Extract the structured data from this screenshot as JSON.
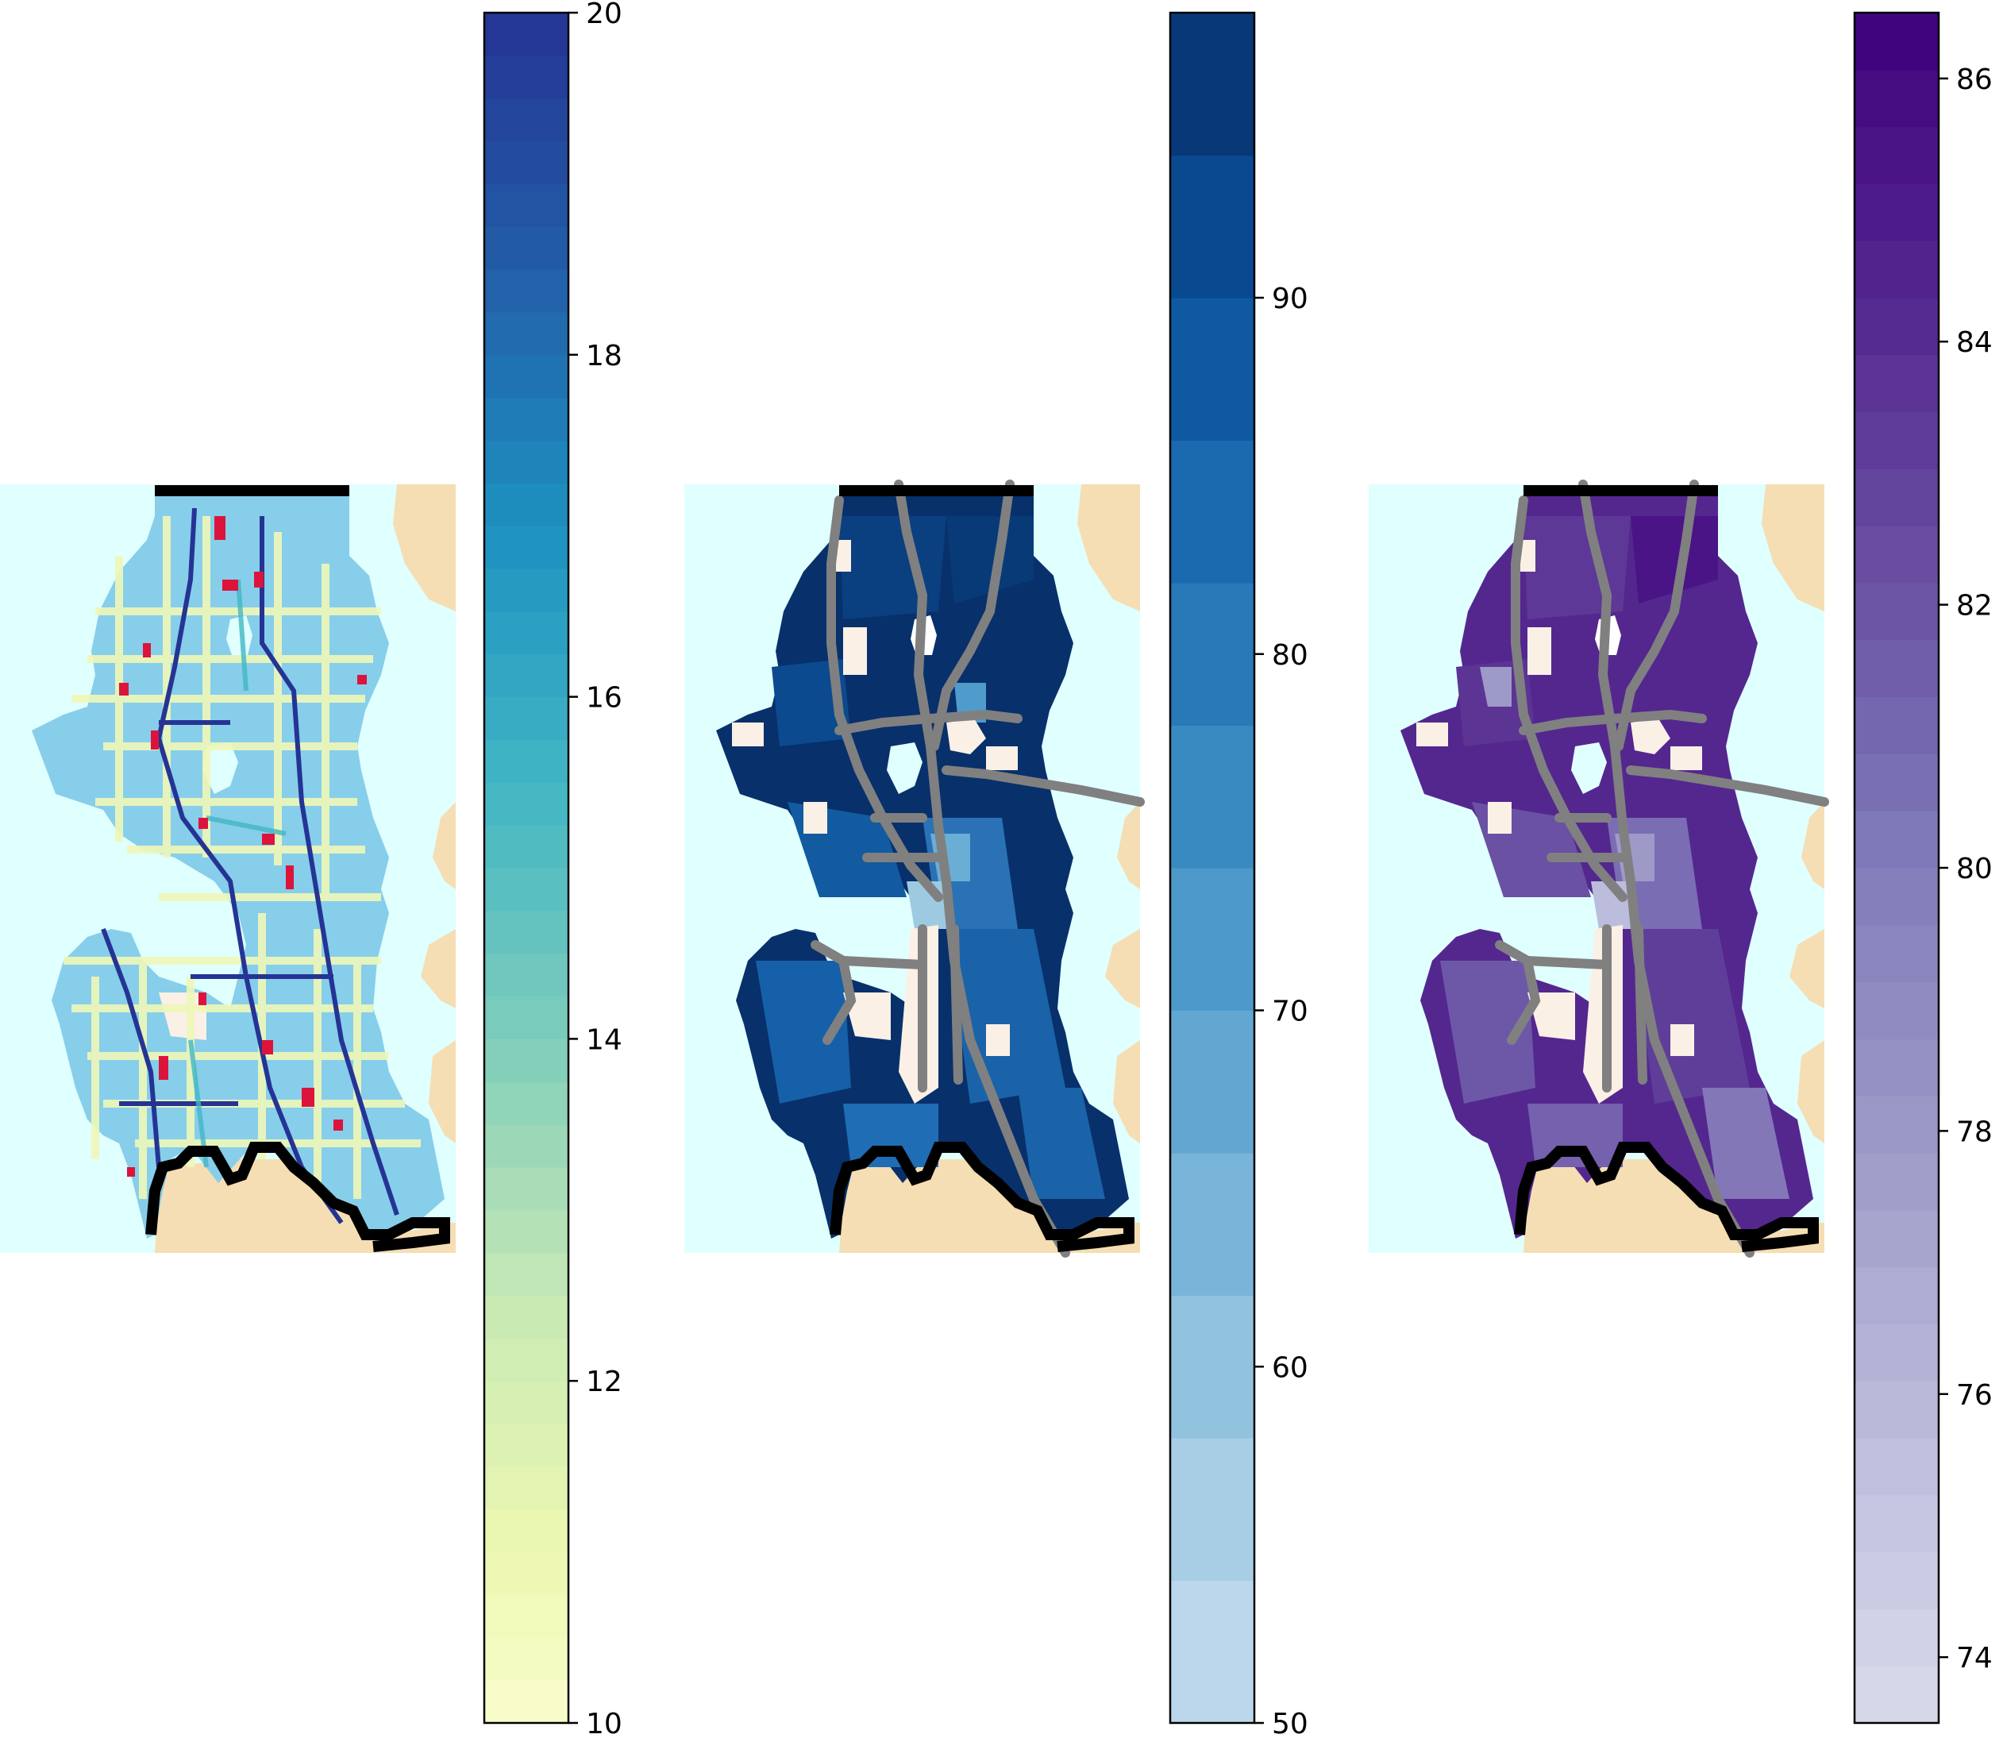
{
  "figure": {
    "panels": [
      {
        "id": "map-left",
        "colorbar": {
          "colormap": "YlGnBu",
          "range": [
            10,
            20
          ],
          "steps": 40,
          "ticks": [
            "10",
            "12",
            "14",
            "16",
            "18",
            "20"
          ]
        }
      },
      {
        "id": "map-middle",
        "colorbar": {
          "colormap": "Blues",
          "range": [
            50,
            98
          ],
          "steps": 12,
          "ticks": [
            "50",
            "60",
            "70",
            "80",
            "90"
          ]
        }
      },
      {
        "id": "map-right",
        "colorbar": {
          "colormap": "Purples",
          "range": [
            73.5,
            86.5
          ],
          "steps": 30,
          "ticks": [
            "74",
            "76",
            "78",
            "80",
            "82",
            "84",
            "86"
          ]
        }
      }
    ],
    "colors": {
      "water": "#e0ffff",
      "land": "#f5deb3",
      "excluded_area": "#faf0e6",
      "highway": "#808080",
      "border": "#000000",
      "highlight_red": "#dc143c"
    }
  }
}
